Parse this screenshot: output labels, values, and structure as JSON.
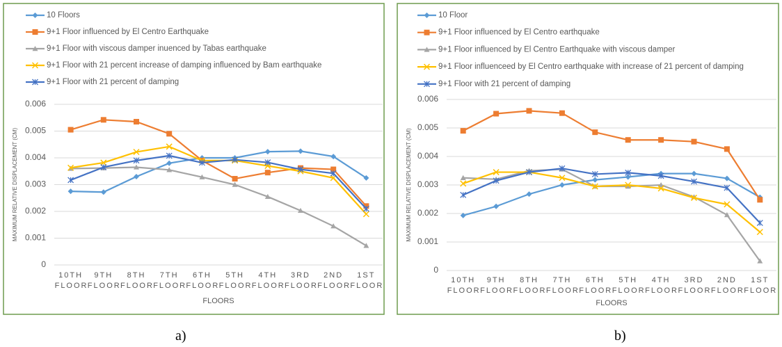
{
  "chart_data": [
    {
      "type": "line",
      "caption": "a)",
      "x_label": "FLOORS",
      "y_label": "MAXIMUM RELATIVE DISPLACEMENT (CM)",
      "categories": [
        "10TH FLOOR",
        "9TH FLOOR",
        "8TH FLOOR",
        "7TH FLOOR",
        "6TH FLOOR",
        "5TH FLOOR",
        "4TH FLOOR",
        "3RD FLOOR",
        "2ND FLOOR",
        "1ST FLOOR"
      ],
      "ylim": [
        0,
        0.006
      ],
      "yticks": [
        0,
        0.001,
        0.002,
        0.003,
        0.004,
        0.005,
        0.006
      ],
      "grid": true,
      "series": [
        {
          "name": "10 Floors",
          "color": "#5b9bd5",
          "marker": "diamond",
          "values": [
            0.00275,
            0.00272,
            0.0033,
            0.0038,
            0.004,
            0.004,
            0.00423,
            0.00425,
            0.00405,
            0.00325
          ]
        },
        {
          "name": "9+1 Floor influenced by El Centro Earthquake",
          "color": "#ed7d31",
          "marker": "square",
          "values": [
            0.00505,
            0.00542,
            0.00535,
            0.0049,
            0.0039,
            0.00322,
            0.00345,
            0.00362,
            0.00357,
            0.0022
          ]
        },
        {
          "name": "9+1 Floor with viscous damper inuenced by Tabas earthquake",
          "color": "#a5a5a5",
          "marker": "triangle",
          "values": [
            0.0036,
            0.00362,
            0.00365,
            0.00355,
            0.00328,
            0.003,
            0.00255,
            0.00203,
            0.00145,
            0.00072
          ]
        },
        {
          "name": "9+1 Floor with 21 percent increase of damping influenced by Bam earthquake",
          "color": "#ffc000",
          "marker": "x",
          "values": [
            0.00363,
            0.00382,
            0.00422,
            0.00442,
            0.0039,
            0.0039,
            0.0037,
            0.0035,
            0.00325,
            0.0019
          ]
        },
        {
          "name": "9+1 Floor with 21 percent of damping",
          "color": "#4472c4",
          "marker": "star",
          "values": [
            0.00317,
            0.00365,
            0.0039,
            0.00408,
            0.00382,
            0.00393,
            0.00383,
            0.00357,
            0.00342,
            0.0021
          ]
        }
      ]
    },
    {
      "type": "line",
      "caption": "b)",
      "x_label": "FLOORS",
      "y_label": "MAXIMUM RELATIVE DISPLACEMENT (CM)",
      "categories": [
        "10TH FLOOR",
        "9TH FLOOR",
        "8TH FLOOR",
        "7TH FLOOR",
        "6TH FLOOR",
        "5TH FLOOR",
        "4TH FLOOR",
        "3RD FLOOR",
        "2ND FLOOR",
        "1ST FLOOR"
      ],
      "ylim": [
        0,
        0.006
      ],
      "yticks": [
        0,
        0.001,
        0.002,
        0.003,
        0.004,
        0.005,
        0.006
      ],
      "grid": true,
      "series": [
        {
          "name": "10 Floor",
          "color": "#5b9bd5",
          "marker": "diamond",
          "values": [
            0.00193,
            0.00225,
            0.00268,
            0.003,
            0.00318,
            0.00328,
            0.0034,
            0.0034,
            0.00323,
            0.00257
          ]
        },
        {
          "name": "9+1 Floor influenced by El Centro earthquake",
          "color": "#ed7d31",
          "marker": "square",
          "values": [
            0.0049,
            0.0055,
            0.0056,
            0.00552,
            0.00485,
            0.00458,
            0.00458,
            0.00452,
            0.00426,
            0.00248
          ]
        },
        {
          "name": "9+1 Floor influenced by El Centro Earthquake with viscous damper",
          "color": "#a5a5a5",
          "marker": "triangle",
          "values": [
            0.00325,
            0.0032,
            0.0035,
            0.00355,
            0.00295,
            0.00295,
            0.003,
            0.00258,
            0.00195,
            0.00033
          ]
        },
        {
          "name": "9+1 Floor influenceed by El Centro earthquake with increase of 21 percent of damping",
          "color": "#ffc000",
          "marker": "x",
          "values": [
            0.00305,
            0.00345,
            0.00345,
            0.00325,
            0.00295,
            0.003,
            0.00288,
            0.00255,
            0.00232,
            0.00135
          ]
        },
        {
          "name": "9+1 Floor with 21 percent of damping",
          "color": "#4472c4",
          "marker": "star",
          "values": [
            0.00265,
            0.00315,
            0.00345,
            0.00358,
            0.00338,
            0.00343,
            0.00332,
            0.00312,
            0.0029,
            0.00167
          ]
        }
      ]
    }
  ]
}
